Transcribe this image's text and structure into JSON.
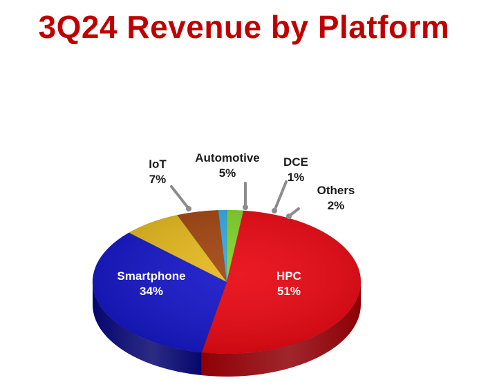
{
  "title": "3Q24 Revenue by Platform",
  "colors": {
    "title": "#C00000",
    "leader": "#8C8C8C",
    "inside_label": "#FFFFFF",
    "outside_label": "#1A1A1A"
  },
  "chart_data": {
    "type": "pie",
    "title": "3Q24 Revenue by Platform",
    "start_angle_deg": -90,
    "direction": "clockwise",
    "slices": [
      {
        "name": "Others",
        "percent": "2%",
        "value": 2,
        "color": "#7DD321",
        "dark": "#4E8A12",
        "label_position": "outside"
      },
      {
        "name": "HPC",
        "percent": "51%",
        "value": 51,
        "color": "#E8000B",
        "dark": "#8E0006",
        "label_position": "inside"
      },
      {
        "name": "Smartphone",
        "percent": "34%",
        "value": 34,
        "color": "#1010C8",
        "dark": "#06066E",
        "label_position": "inside"
      },
      {
        "name": "IoT",
        "percent": "7%",
        "value": 7,
        "color": "#E6B818",
        "dark": "#8D6D08",
        "label_position": "outside"
      },
      {
        "name": "Automotive",
        "percent": "5%",
        "value": 5,
        "color": "#A0400A",
        "dark": "#5E2404",
        "label_position": "outside"
      },
      {
        "name": "DCE",
        "percent": "1%",
        "value": 1,
        "color": "#2BA8E8",
        "dark": "#156996",
        "label_position": "outside"
      }
    ]
  }
}
